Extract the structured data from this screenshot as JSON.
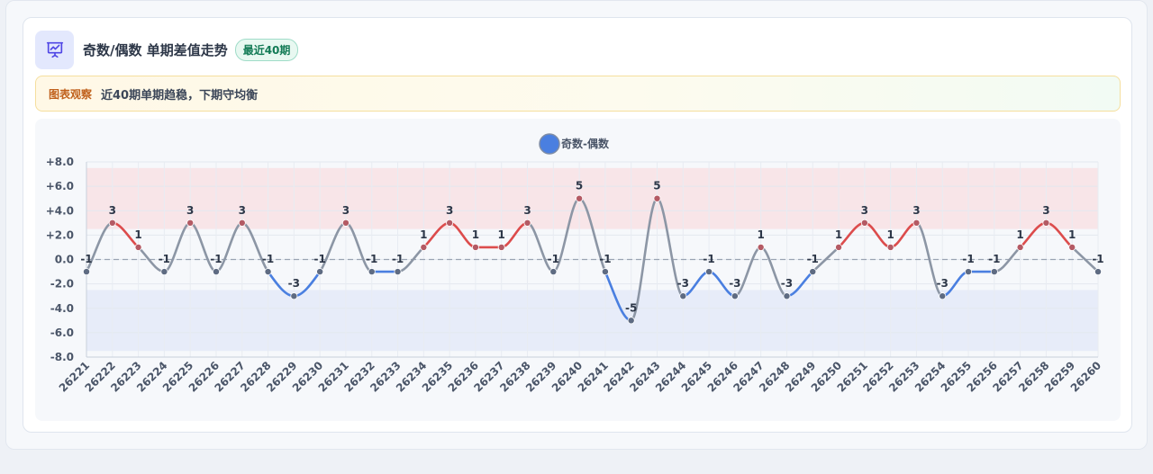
{
  "header": {
    "title": "奇数/偶数 单期差值走势",
    "badge": "最近40期"
  },
  "note": {
    "label": "图表观察",
    "text": "近40期单期趋稳，下期守均衡"
  },
  "colors": {
    "positive": "#dc4c4c",
    "negative": "#4a7fe0",
    "neutral": "#8c96a5",
    "legend": "#4a7fe0",
    "band_positive": "#f8e5e8",
    "band_negative": "#e7ecf9"
  },
  "chart_data": {
    "type": "line",
    "smooth": true,
    "legend": [
      "奇数-偶数"
    ],
    "legend_position": "top-center",
    "categories": [
      "26221",
      "26222",
      "26223",
      "26224",
      "26225",
      "26226",
      "26227",
      "26228",
      "26229",
      "26230",
      "26231",
      "26232",
      "26233",
      "26234",
      "26235",
      "26236",
      "26237",
      "26238",
      "26239",
      "26240",
      "26241",
      "26242",
      "26243",
      "26244",
      "26245",
      "26246",
      "26247",
      "26248",
      "26249",
      "26250",
      "26251",
      "26252",
      "26253",
      "26254",
      "26255",
      "26256",
      "26257",
      "26258",
      "26259",
      "26260"
    ],
    "series": [
      {
        "name": "奇数-偶数",
        "values": [
          -1,
          3,
          1,
          -1,
          3,
          -1,
          3,
          -1,
          -3,
          -1,
          3,
          -1,
          -1,
          1,
          3,
          1,
          1,
          3,
          -1,
          5,
          -1,
          -5,
          5,
          -3,
          -1,
          -3,
          1,
          -3,
          -1,
          1,
          3,
          1,
          3,
          -3,
          -1,
          -1,
          1,
          3,
          1,
          -1
        ]
      }
    ],
    "ylim": [
      -8,
      8
    ],
    "yticks": [
      "+8.0",
      "+6.0",
      "+4.0",
      "+2.0",
      "0.0",
      "-2.0",
      "-4.0",
      "-6.0",
      "-8.0"
    ],
    "ytick_values": [
      8,
      6,
      4,
      2,
      0,
      -2,
      -4,
      -6,
      -8
    ],
    "reference_line": 0,
    "bands": [
      {
        "from": 2.5,
        "to": 7.5,
        "kind": "positive"
      },
      {
        "from": -7.5,
        "to": -2.5,
        "kind": "negative"
      }
    ],
    "grid": true,
    "xlabel": "",
    "ylabel": ""
  }
}
